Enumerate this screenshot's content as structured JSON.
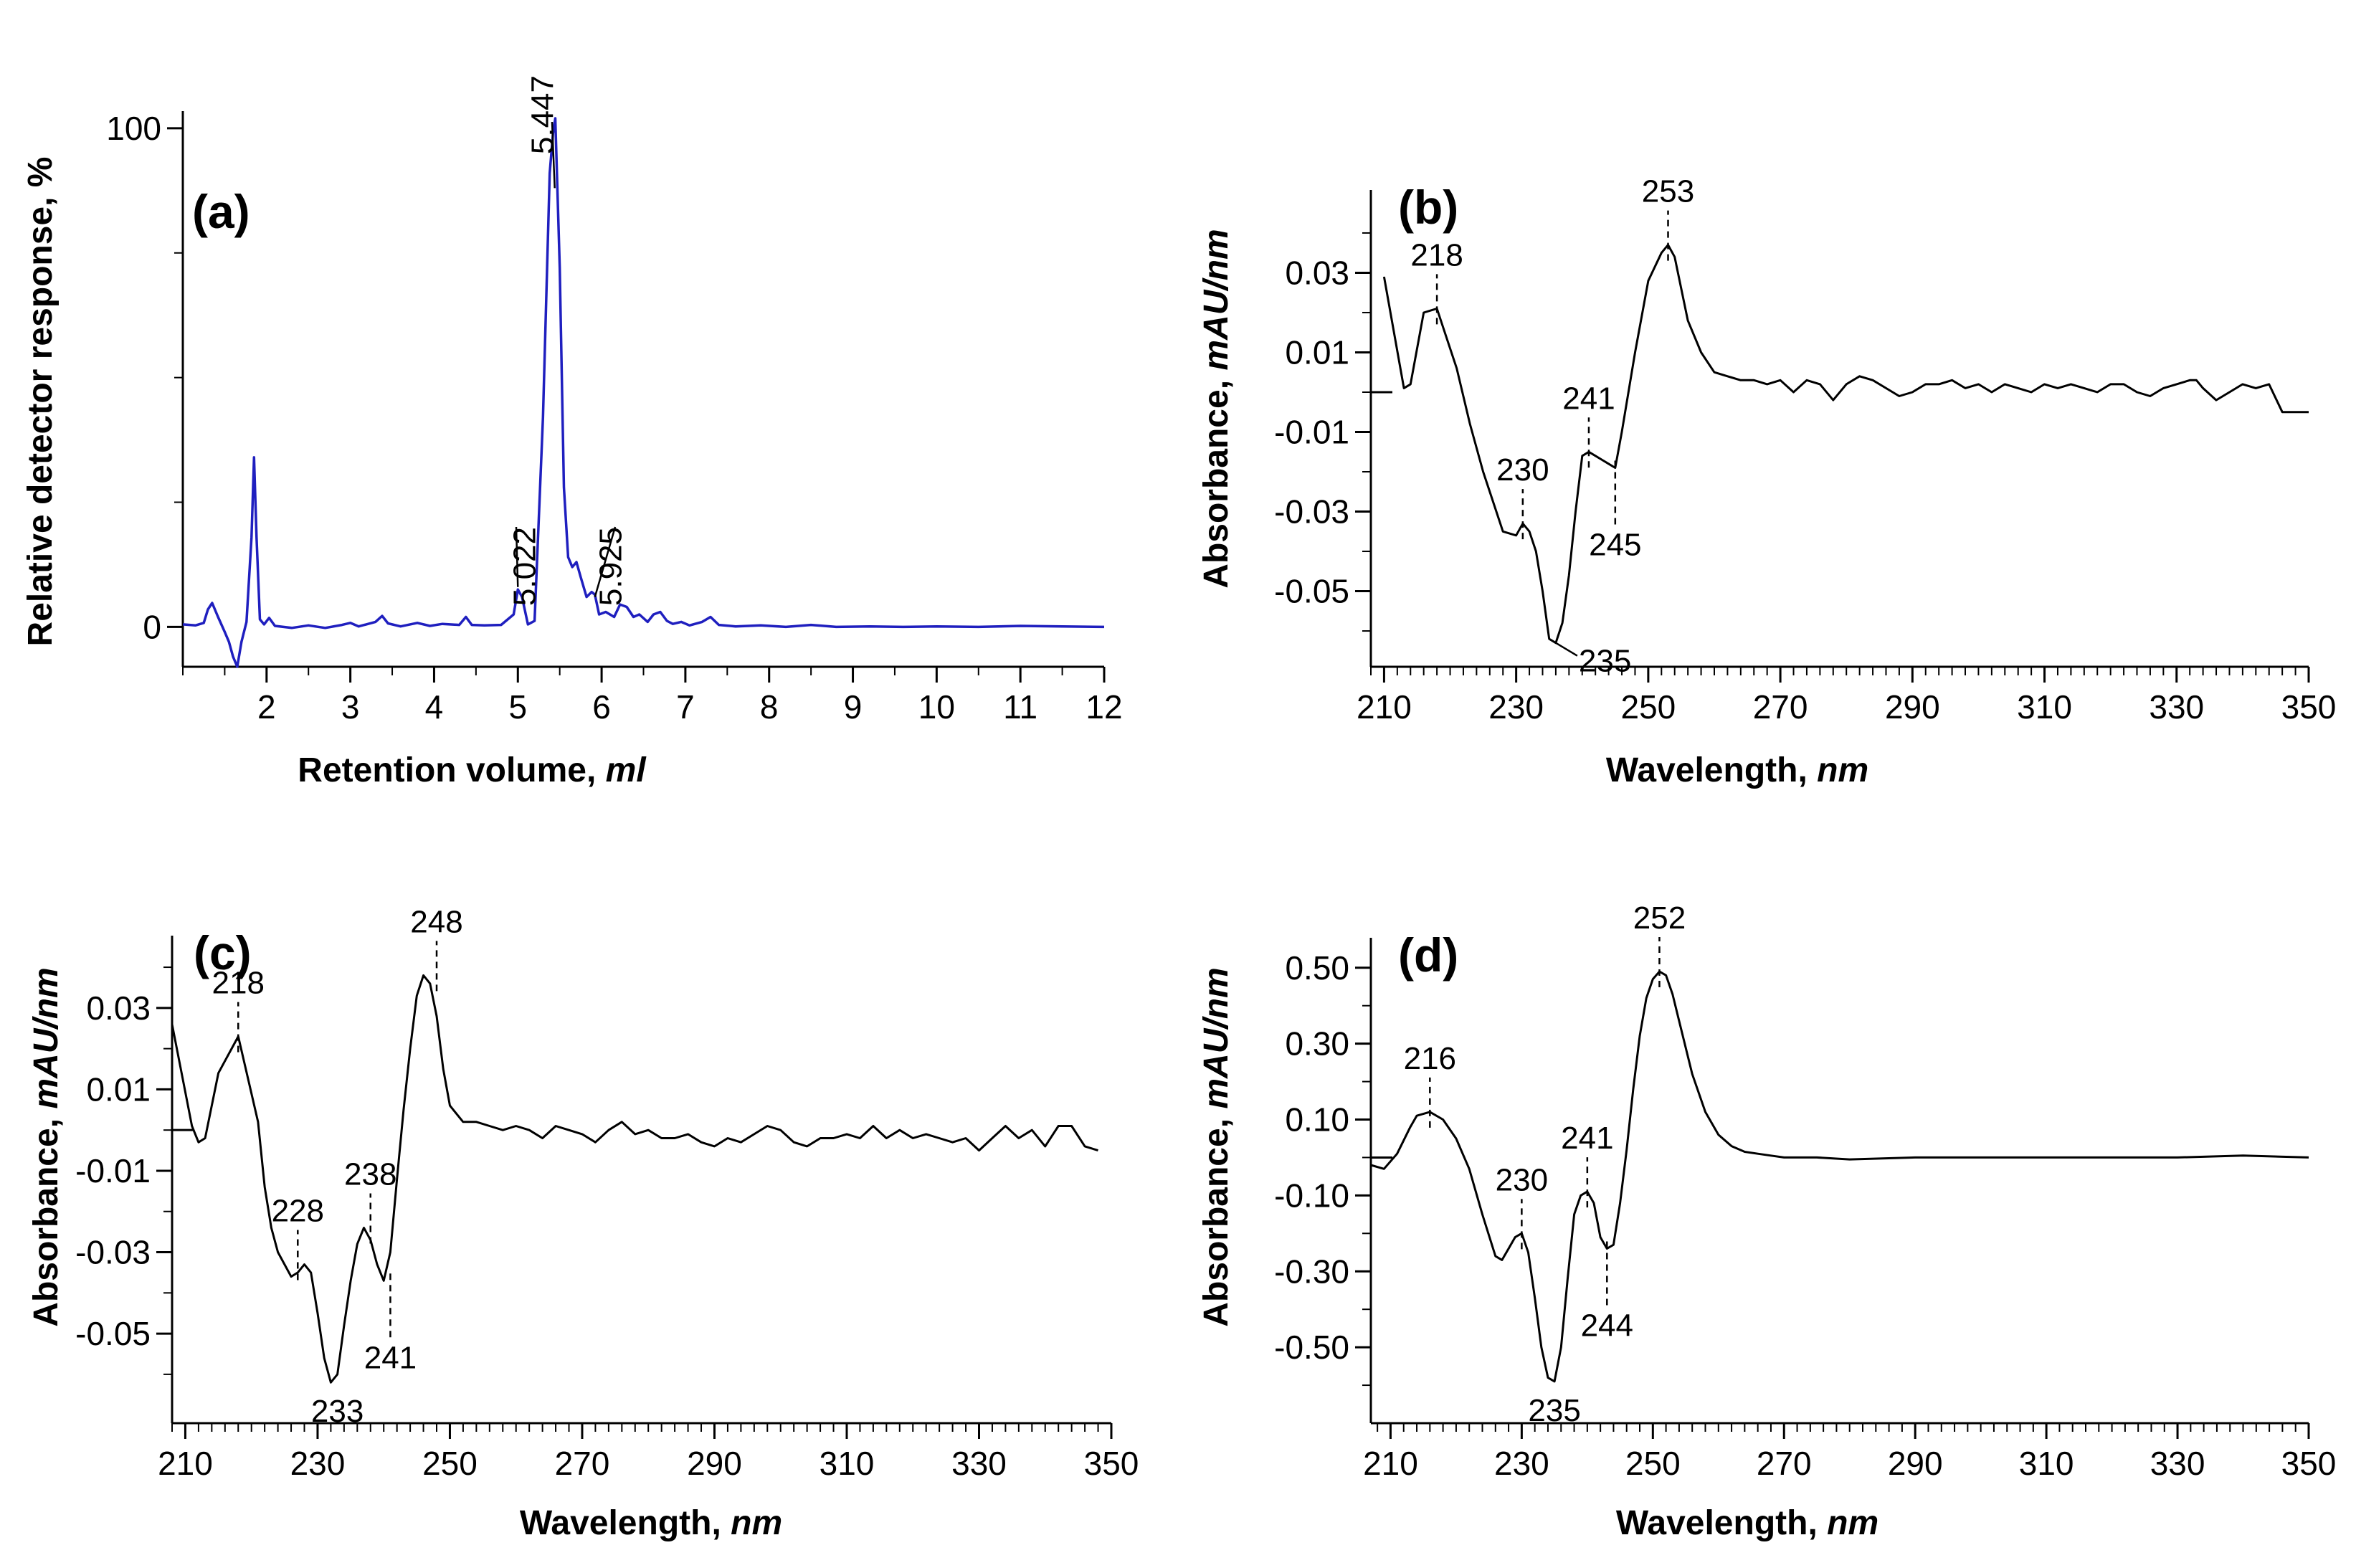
{
  "chart_data": [
    {
      "id": "a",
      "type": "line",
      "panel_label": "(a)",
      "title": "",
      "xlabel": "Retention volume, ",
      "xlabel_unit": "ml",
      "ylabel": "Relative detector response, %",
      "xlim": [
        1.0,
        12.0
      ],
      "ylim": [
        -8,
        102
      ],
      "xticks": [
        2,
        3,
        4,
        5,
        6,
        7,
        8,
        9,
        10,
        11,
        12
      ],
      "xtick_labels": [
        "2",
        "3",
        "4",
        "5",
        "6",
        "7",
        "8",
        "9",
        "10",
        "11",
        "12"
      ],
      "yticks": [
        0,
        100
      ],
      "ytick_labels": [
        "0",
        "100"
      ],
      "yminor": [
        25,
        50,
        75
      ],
      "line_color": "#1f1fbf",
      "series": [
        {
          "name": "chromatogram",
          "x": [
            1.0,
            1.15,
            1.25,
            1.3,
            1.35,
            1.42,
            1.5,
            1.55,
            1.6,
            1.65,
            1.7,
            1.76,
            1.82,
            1.85,
            1.88,
            1.92,
            1.97,
            2.03,
            2.1,
            2.3,
            2.5,
            2.7,
            2.9,
            3.0,
            3.1,
            3.3,
            3.38,
            3.45,
            3.6,
            3.8,
            3.95,
            4.1,
            4.3,
            4.38,
            4.45,
            4.6,
            4.8,
            4.95,
            5.0,
            5.05,
            5.12,
            5.2,
            5.3,
            5.38,
            5.42,
            5.447,
            5.5,
            5.55,
            5.6,
            5.65,
            5.7,
            5.75,
            5.82,
            5.88,
            5.92,
            5.97,
            6.05,
            6.15,
            6.22,
            6.3,
            6.38,
            6.45,
            6.55,
            6.62,
            6.7,
            6.78,
            6.85,
            6.95,
            7.05,
            7.2,
            7.3,
            7.4,
            7.6,
            7.9,
            8.2,
            8.5,
            8.8,
            9.2,
            9.6,
            10.0,
            10.5,
            11.0,
            11.5,
            12.0
          ],
          "y": [
            0.5,
            0.3,
            0.8,
            3.5,
            4.8,
            2.0,
            -1.0,
            -3.0,
            -6.0,
            -8.0,
            -3.0,
            1.0,
            18.0,
            34.0,
            18.0,
            1.5,
            0.5,
            1.8,
            0.2,
            -0.2,
            0.3,
            -0.2,
            0.4,
            0.8,
            0.1,
            1.0,
            2.2,
            0.7,
            0.1,
            0.8,
            0.2,
            0.6,
            0.4,
            2.0,
            0.4,
            0.3,
            0.4,
            2.5,
            7.5,
            6.0,
            0.5,
            1.2,
            42.0,
            91.0,
            99.0,
            102.0,
            72.0,
            28.0,
            14.0,
            12.0,
            13.0,
            10.0,
            6.0,
            7.0,
            6.5,
            2.5,
            3.0,
            2.0,
            4.5,
            4.0,
            2.0,
            2.5,
            1.0,
            2.5,
            3.0,
            1.2,
            0.6,
            1.0,
            0.3,
            1.0,
            2.0,
            0.4,
            0.1,
            0.3,
            0.0,
            0.4,
            0.0,
            0.1,
            0.0,
            0.1,
            0.0,
            0.2,
            0.1,
            0.0
          ]
        }
      ],
      "annotations": [
        {
          "text": "5.447",
          "x": 5.44,
          "y": 88
        },
        {
          "text": "5.022",
          "x": 5.0,
          "y": 8
        },
        {
          "text": "5.925",
          "x": 5.92,
          "y": 6
        }
      ]
    },
    {
      "id": "b",
      "type": "line",
      "panel_label": "(b)",
      "title": "",
      "xlabel": "Wavelength, ",
      "xlabel_unit": "nm",
      "ylabel": "Absorbance, ",
      "ylabel_unit": "mAU/nm",
      "xlim": [
        208,
        350
      ],
      "ylim": [
        -0.069,
        0.049
      ],
      "xticks": [
        210,
        230,
        250,
        270,
        290,
        310,
        330,
        350
      ],
      "xtick_labels": [
        "210",
        "230",
        "250",
        "270",
        "290",
        "310",
        "330",
        "350"
      ],
      "yticks": [
        0.03,
        0.01,
        -0.01,
        -0.03,
        -0.05
      ],
      "ytick_labels": [
        "0.03",
        "0.01",
        "-0.01",
        "-0.03",
        "-0.05"
      ],
      "line_color": "#000000",
      "series": [
        {
          "name": "spectrum",
          "x": [
            210,
            213,
            214,
            216,
            218,
            219,
            221,
            223,
            225,
            227,
            228,
            230,
            231,
            232,
            233,
            234,
            235,
            236,
            237,
            238,
            239,
            240,
            241,
            242,
            243,
            244,
            245,
            246,
            248,
            250,
            252,
            253,
            254,
            256,
            258,
            260,
            262,
            264,
            266,
            268,
            270,
            272,
            274,
            276,
            278,
            280,
            282,
            284,
            286,
            288,
            290,
            292,
            294,
            296,
            298,
            300,
            302,
            304,
            306,
            308,
            310,
            312,
            314,
            316,
            318,
            320,
            322,
            324,
            326,
            328,
            330,
            332,
            333,
            334,
            336,
            338,
            340,
            342,
            344,
            346,
            348,
            350
          ],
          "y": [
            0.029,
            0.001,
            0.002,
            0.02,
            0.021,
            0.016,
            0.006,
            -0.008,
            -0.02,
            -0.03,
            -0.035,
            -0.036,
            -0.033,
            -0.035,
            -0.04,
            -0.05,
            -0.062,
            -0.063,
            -0.058,
            -0.046,
            -0.03,
            -0.016,
            -0.015,
            -0.016,
            -0.017,
            -0.018,
            -0.019,
            -0.01,
            0.01,
            0.028,
            0.035,
            0.037,
            0.034,
            0.018,
            0.01,
            0.005,
            0.004,
            0.003,
            0.003,
            0.002,
            0.003,
            0.0,
            0.003,
            0.002,
            -0.002,
            0.002,
            0.004,
            0.003,
            0.001,
            -0.001,
            0.0,
            0.002,
            0.002,
            0.003,
            0.001,
            0.002,
            0.0,
            0.002,
            0.001,
            0.0,
            0.002,
            0.001,
            0.002,
            0.001,
            0.0,
            0.002,
            0.002,
            0.0,
            -0.001,
            0.001,
            0.002,
            0.003,
            0.003,
            0.001,
            -0.002,
            0.0,
            0.002,
            0.001,
            0.002,
            -0.005,
            -0.005,
            -0.005
          ]
        }
      ],
      "annotations": [
        {
          "text": "218",
          "x": 218,
          "y": 0.021,
          "dir": "up"
        },
        {
          "text": "253",
          "x": 253,
          "y": 0.037,
          "dir": "up"
        },
        {
          "text": "230",
          "x": 231,
          "y": -0.033,
          "dir": "up"
        },
        {
          "text": "241",
          "x": 241,
          "y": -0.015,
          "dir": "up"
        },
        {
          "text": "245",
          "x": 245,
          "y": -0.019,
          "dir": "down"
        },
        {
          "text": "235",
          "x": 236,
          "y": -0.063,
          "dir": "leader"
        }
      ]
    },
    {
      "id": "c",
      "type": "line",
      "panel_label": "(c)",
      "title": "",
      "xlabel": "Wavelength, ",
      "xlabel_unit": "nm",
      "ylabel": "Absorbance, ",
      "ylabel_unit": "mAU/nm",
      "xlim": [
        208,
        350
      ],
      "ylim": [
        -0.072,
        0.046
      ],
      "xticks": [
        210,
        230,
        250,
        270,
        290,
        310,
        330,
        350
      ],
      "xtick_labels": [
        "210",
        "230",
        "250",
        "270",
        "290",
        "310",
        "330",
        "350"
      ],
      "yticks": [
        0.03,
        0.01,
        -0.01,
        -0.03,
        -0.05
      ],
      "ytick_labels": [
        "0.03",
        "0.01",
        "-0.01",
        "-0.03",
        "-0.05"
      ],
      "line_color": "#000000",
      "series": [
        {
          "name": "spectrum",
          "x": [
            208,
            211,
            212,
            213,
            215,
            216,
            218,
            219,
            221,
            222,
            223,
            224,
            226,
            227,
            228,
            229,
            230,
            231,
            232,
            233,
            234,
            235,
            236,
            237,
            238,
            239,
            240,
            241,
            242,
            243,
            244,
            245,
            246,
            247,
            248,
            249,
            250,
            252,
            254,
            256,
            258,
            260,
            262,
            264,
            266,
            268,
            270,
            272,
            274,
            276,
            278,
            280,
            282,
            284,
            286,
            288,
            290,
            292,
            294,
            296,
            298,
            300,
            302,
            304,
            306,
            308,
            310,
            312,
            314,
            316,
            318,
            320,
            322,
            324,
            326,
            328,
            330,
            332,
            334,
            336,
            338,
            340,
            342,
            344,
            346,
            348
          ],
          "y": [
            0.026,
            0.001,
            -0.003,
            -0.002,
            0.014,
            0.017,
            0.023,
            0.016,
            0.002,
            -0.014,
            -0.024,
            -0.03,
            -0.036,
            -0.035,
            -0.033,
            -0.035,
            -0.045,
            -0.056,
            -0.062,
            -0.06,
            -0.048,
            -0.037,
            -0.028,
            -0.024,
            -0.027,
            -0.033,
            -0.037,
            -0.03,
            -0.012,
            0.005,
            0.02,
            0.033,
            0.038,
            0.036,
            0.028,
            0.015,
            0.006,
            0.002,
            0.002,
            0.001,
            0.0,
            0.001,
            0.0,
            -0.002,
            0.001,
            0.0,
            -0.001,
            -0.003,
            0.0,
            0.002,
            -0.001,
            0.0,
            -0.002,
            -0.002,
            -0.001,
            -0.003,
            -0.004,
            -0.002,
            -0.003,
            -0.001,
            0.001,
            0.0,
            -0.003,
            -0.004,
            -0.002,
            -0.002,
            -0.001,
            -0.002,
            0.001,
            -0.002,
            0.0,
            -0.002,
            -0.001,
            -0.002,
            -0.003,
            -0.002,
            -0.005,
            -0.002,
            0.001,
            -0.002,
            0.0,
            -0.004,
            0.001,
            0.001,
            -0.004,
            -0.005
          ]
        }
      ],
      "annotations": [
        {
          "text": "218",
          "x": 218,
          "y": 0.023,
          "dir": "up"
        },
        {
          "text": "248",
          "x": 248,
          "y": 0.038,
          "dir": "up"
        },
        {
          "text": "228",
          "x": 227,
          "y": -0.033,
          "dir": "up"
        },
        {
          "text": "238",
          "x": 238,
          "y": -0.024,
          "dir": "up"
        },
        {
          "text": "241",
          "x": 241,
          "y": -0.037,
          "dir": "down"
        },
        {
          "text": "233",
          "x": 233,
          "y": -0.062,
          "dir": "below"
        }
      ]
    },
    {
      "id": "d",
      "type": "line",
      "panel_label": "(d)",
      "title": "",
      "xlabel": "Wavelength, ",
      "xlabel_unit": "nm",
      "ylabel": "Absorbance, ",
      "ylabel_unit": "mAU/nm",
      "xlim": [
        207,
        350
      ],
      "ylim": [
        -0.7,
        0.56
      ],
      "xticks": [
        210,
        230,
        250,
        270,
        290,
        310,
        330,
        350
      ],
      "xtick_labels": [
        "210",
        "230",
        "250",
        "270",
        "290",
        "310",
        "330",
        "350"
      ],
      "yticks": [
        0.5,
        0.3,
        0.1,
        -0.1,
        -0.3,
        -0.5
      ],
      "ytick_labels": [
        "0.50",
        "0.30",
        "0.10",
        "-0.10",
        "-0.30",
        "-0.50"
      ],
      "line_color": "#000000",
      "series": [
        {
          "name": "spectrum",
          "x": [
            207,
            209,
            211,
            213,
            214,
            216,
            218,
            220,
            222,
            224,
            226,
            227,
            228,
            229,
            230,
            231,
            232,
            233,
            234,
            235,
            236,
            237,
            238,
            239,
            240,
            241,
            242,
            243,
            244,
            245,
            246,
            247,
            248,
            249,
            250,
            251,
            252,
            253,
            254,
            256,
            258,
            260,
            262,
            264,
            266,
            268,
            270,
            275,
            280,
            290,
            300,
            310,
            320,
            330,
            340,
            350
          ],
          "y": [
            -0.02,
            -0.03,
            0.01,
            0.08,
            0.11,
            0.12,
            0.1,
            0.05,
            -0.03,
            -0.15,
            -0.26,
            -0.27,
            -0.24,
            -0.21,
            -0.2,
            -0.25,
            -0.37,
            -0.5,
            -0.58,
            -0.59,
            -0.5,
            -0.32,
            -0.15,
            -0.1,
            -0.09,
            -0.12,
            -0.21,
            -0.24,
            -0.23,
            -0.12,
            0.02,
            0.18,
            0.32,
            0.42,
            0.47,
            0.49,
            0.48,
            0.43,
            0.36,
            0.22,
            0.12,
            0.06,
            0.03,
            0.015,
            0.01,
            0.005,
            0.0,
            0.0,
            -0.005,
            0.0,
            0.0,
            0.0,
            0.0,
            0.0,
            0.005,
            0.0
          ]
        }
      ],
      "annotations": [
        {
          "text": "216",
          "x": 216,
          "y": 0.12,
          "dir": "up"
        },
        {
          "text": "252",
          "x": 251,
          "y": 0.49,
          "dir": "up"
        },
        {
          "text": "230",
          "x": 230,
          "y": -0.2,
          "dir": "up"
        },
        {
          "text": "241",
          "x": 240,
          "y": -0.09,
          "dir": "up"
        },
        {
          "text": "244",
          "x": 243,
          "y": -0.24,
          "dir": "down"
        },
        {
          "text": "235",
          "x": 235,
          "y": -0.59,
          "dir": "below"
        }
      ]
    }
  ]
}
